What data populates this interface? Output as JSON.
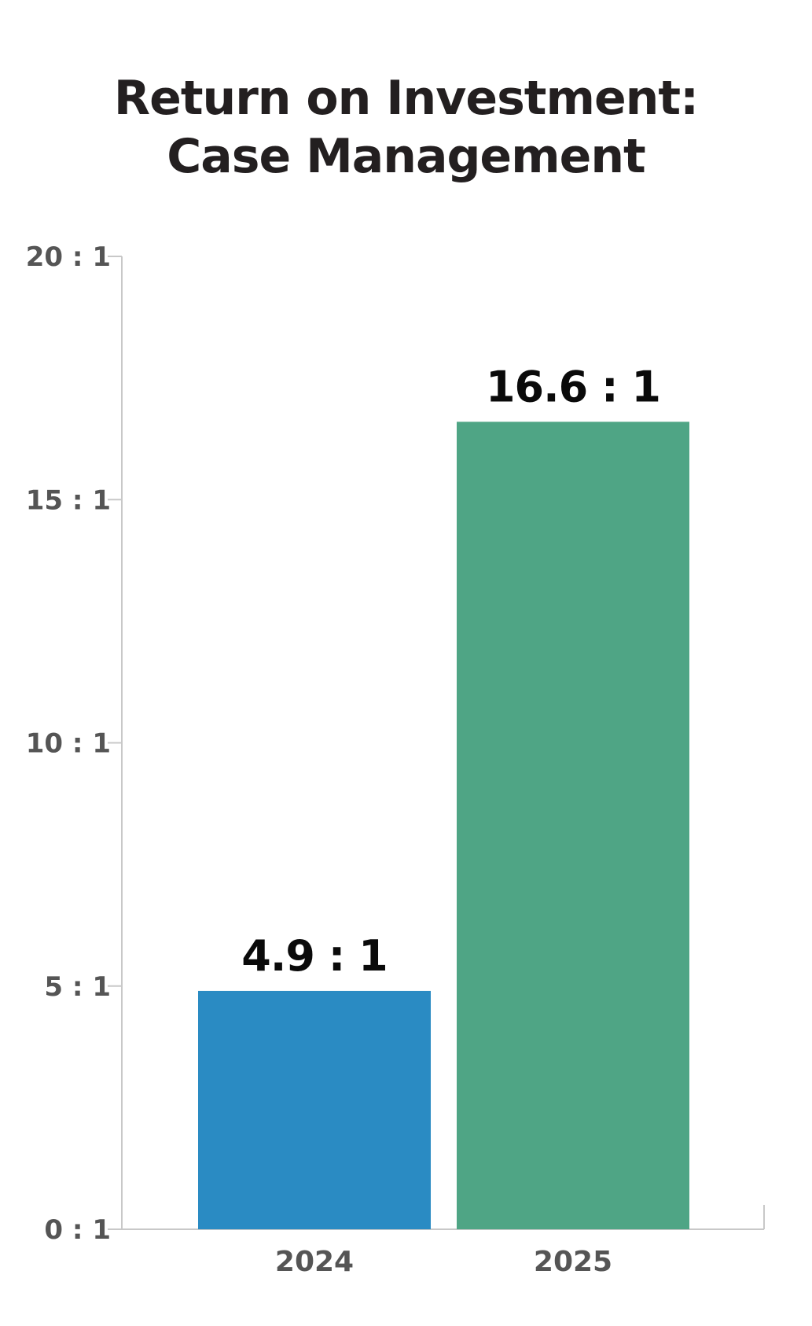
{
  "chart_data": {
    "type": "bar",
    "title_lines": [
      "Return on Investment:",
      "Case Management"
    ],
    "categories": [
      "2024",
      "2025"
    ],
    "values": [
      4.9,
      16.6
    ],
    "data_labels": [
      "4.9 : 1",
      "16.6 : 1"
    ],
    "colors": [
      "#2a8bc3",
      "#4fa585"
    ],
    "ylim": [
      0,
      20
    ],
    "yticks": [
      0,
      5,
      10,
      15,
      20
    ],
    "ytick_labels": [
      "0 : 1",
      "5 : 1",
      "10 : 1",
      "15 : 1",
      "20 : 1"
    ],
    "xlabel": "",
    "ylabel": "",
    "grid": false,
    "legend": "none"
  }
}
